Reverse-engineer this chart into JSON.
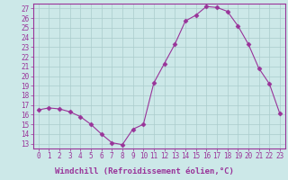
{
  "x": [
    0,
    1,
    2,
    3,
    4,
    5,
    6,
    7,
    8,
    9,
    10,
    11,
    12,
    13,
    14,
    15,
    16,
    17,
    18,
    19,
    20,
    21,
    22,
    23
  ],
  "y": [
    16.5,
    16.7,
    16.6,
    16.3,
    15.8,
    15.0,
    14.0,
    13.1,
    12.9,
    14.5,
    15.0,
    19.3,
    21.3,
    23.3,
    25.7,
    26.3,
    27.2,
    27.1,
    26.7,
    25.2,
    23.3,
    20.8,
    19.2,
    16.1
  ],
  "line_color": "#993399",
  "marker": "D",
  "marker_size": 2.5,
  "bg_color": "#cce8e8",
  "grid_color": "#aacccc",
  "xlabel": "Windchill (Refroidissement éolien,°C)",
  "xlabel_color": "#993399",
  "xlim": [
    -0.5,
    23.5
  ],
  "ylim": [
    12.5,
    27.5
  ],
  "yticks": [
    13,
    14,
    15,
    16,
    17,
    18,
    19,
    20,
    21,
    22,
    23,
    24,
    25,
    26,
    27
  ],
  "xticks": [
    0,
    1,
    2,
    3,
    4,
    5,
    6,
    7,
    8,
    9,
    10,
    11,
    12,
    13,
    14,
    15,
    16,
    17,
    18,
    19,
    20,
    21,
    22,
    23
  ],
  "tick_color": "#993399",
  "tick_fontsize": 5.5,
  "xlabel_fontsize": 6.5,
  "spine_color": "#993399",
  "separator_color": "#993399"
}
